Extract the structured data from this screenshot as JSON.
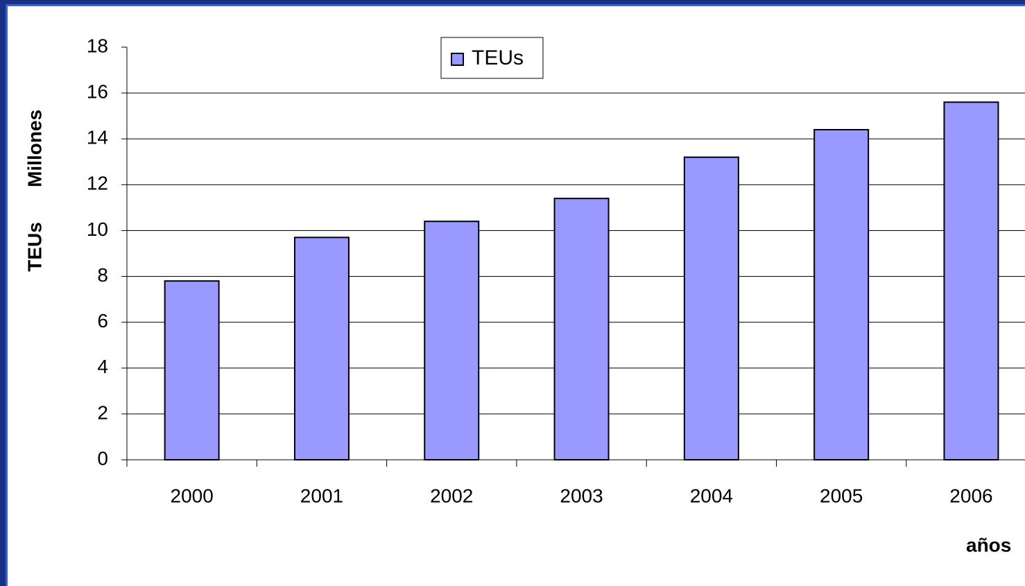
{
  "chart_data": {
    "type": "bar",
    "ylabel": "TEUs",
    "yunit": "Millones",
    "xlabel": "años",
    "categories": [
      "2000",
      "2001",
      "2002",
      "2003",
      "2004",
      "2005",
      "2006"
    ],
    "series": [
      {
        "name": "TEUs",
        "color": "#9999ff",
        "values": [
          7.8,
          9.7,
          10.4,
          11.4,
          13.2,
          14.4,
          15.6
        ]
      }
    ],
    "ylim": [
      0,
      18
    ],
    "yticks": [
      0,
      2,
      4,
      6,
      8,
      10,
      12,
      14,
      16,
      18
    ],
    "grid": true,
    "legend": "top"
  }
}
